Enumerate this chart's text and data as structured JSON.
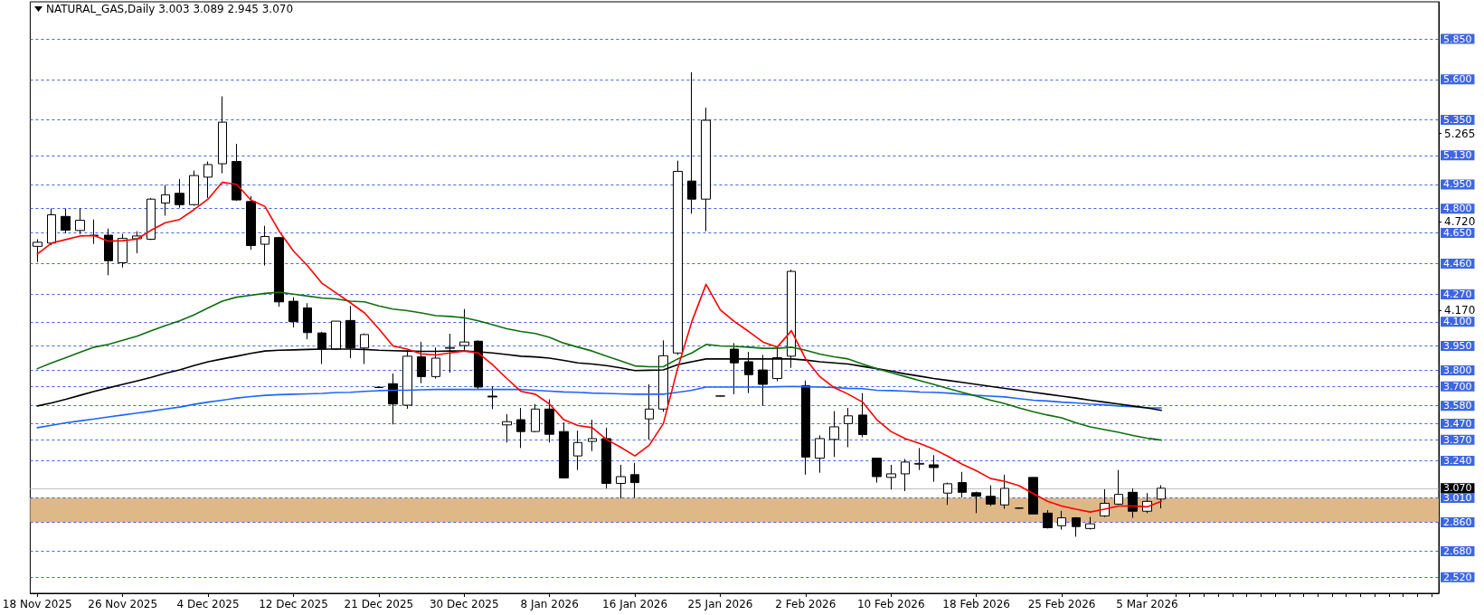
{
  "chart_data": {
    "type": "candlestick",
    "title": "NATURAL_GAS,Daily 3.003 3.089 2.945 3.070",
    "categories": [
      "18 Nov 2025",
      null,
      null,
      null,
      null,
      null,
      "26 Nov 2025",
      null,
      null,
      null,
      null,
      null,
      "4 Dec 2025",
      null,
      null,
      null,
      null,
      null,
      "12 Dec 2025",
      null,
      null,
      null,
      null,
      null,
      "21 Dec 2025",
      null,
      null,
      null,
      null,
      null,
      "30 Dec 2025",
      null,
      null,
      null,
      null,
      null,
      "8 Jan 2026",
      null,
      null,
      null,
      null,
      null,
      "16 Jan 2026",
      null,
      null,
      null,
      null,
      null,
      "25 Jan 2026",
      null,
      null,
      null,
      null,
      null,
      "2 Feb 2026",
      null,
      null,
      null,
      null,
      null,
      "10 Feb 2026",
      null,
      null,
      null,
      null,
      null,
      "18 Feb 2026",
      null,
      null,
      null,
      null,
      null,
      "25 Feb 2026",
      null,
      null,
      null,
      null,
      null,
      "5 Mar 2026",
      null
    ],
    "ohlc": [
      [
        4.567,
        4.611,
        4.47,
        4.592
      ],
      [
        4.587,
        4.801,
        4.575,
        4.762
      ],
      [
        4.752,
        4.801,
        4.648,
        4.667
      ],
      [
        4.665,
        4.801,
        4.643,
        4.728
      ],
      [
        4.633,
        4.733,
        4.582,
        4.636
      ],
      [
        4.636,
        4.677,
        4.388,
        4.478
      ],
      [
        4.466,
        4.643,
        4.436,
        4.616
      ],
      [
        4.614,
        4.66,
        4.524,
        4.631
      ],
      [
        4.611,
        4.866,
        4.606,
        4.859
      ],
      [
        4.835,
        4.946,
        4.757,
        4.886
      ],
      [
        4.895,
        4.983,
        4.806,
        4.825
      ],
      [
        4.825,
        5.036,
        4.818,
        5.005
      ],
      [
        4.995,
        5.092,
        4.866,
        5.073
      ],
      [
        5.078,
        5.495,
        5.019,
        5.335
      ],
      [
        5.092,
        5.201,
        4.849,
        4.854
      ],
      [
        4.844,
        4.878,
        4.546,
        4.572
      ],
      [
        4.58,
        4.694,
        4.448,
        4.628
      ],
      [
        4.621,
        4.626,
        4.193,
        4.223
      ],
      [
        4.227,
        4.252,
        4.065,
        4.101
      ],
      [
        4.186,
        4.215,
        3.992,
        4.033
      ],
      [
        4.031,
        4.038,
        3.839,
        3.931
      ],
      [
        3.931,
        4.104,
        3.926,
        4.104
      ],
      [
        4.108,
        4.198,
        3.875,
        3.938
      ],
      [
        3.938,
        4.028,
        3.839,
        4.021
      ],
      [
        3.693,
        3.698,
        3.69,
        3.695
      ],
      [
        3.717,
        3.78,
        3.465,
        3.591
      ],
      [
        3.584,
        3.914,
        3.562,
        3.887
      ],
      [
        3.883,
        3.975,
        3.72,
        3.761
      ],
      [
        3.761,
        3.941,
        3.749,
        3.875
      ],
      [
        3.936,
        4.026,
        3.785,
        3.941
      ],
      [
        3.953,
        4.179,
        3.919,
        3.975
      ],
      [
        3.98,
        3.985,
        3.683,
        3.696
      ],
      [
        3.64,
        3.7,
        3.56,
        3.635
      ],
      [
        3.462,
        3.528,
        3.353,
        3.482
      ],
      [
        3.494,
        3.567,
        3.319,
        3.421
      ],
      [
        3.421,
        3.591,
        3.416,
        3.56
      ],
      [
        3.56,
        3.62,
        3.353,
        3.404
      ],
      [
        3.421,
        3.477,
        3.13,
        3.134
      ],
      [
        3.27,
        3.426,
        3.183,
        3.353
      ],
      [
        3.36,
        3.494,
        3.3,
        3.377
      ],
      [
        3.377,
        3.445,
        3.069,
        3.1
      ],
      [
        3.1,
        3.215,
        3.008,
        3.142
      ],
      [
        3.154,
        3.227,
        3.013,
        3.105
      ],
      [
        3.499,
        3.713,
        3.372,
        3.56
      ],
      [
        3.56,
        3.985,
        3.543,
        3.89
      ],
      [
        3.907,
        5.097,
        3.895,
        5.031
      ],
      [
        4.971,
        5.644,
        4.769,
        4.859
      ],
      [
        4.859,
        5.425,
        4.66,
        5.347
      ],
      [
        3.64,
        3.643,
        3.638,
        3.641
      ],
      [
        3.931,
        3.968,
        3.652,
        3.846
      ],
      [
        3.853,
        3.914,
        3.659,
        3.773
      ],
      [
        3.802,
        3.895,
        3.579,
        3.713
      ],
      [
        3.749,
        3.943,
        3.732,
        3.878
      ],
      [
        3.887,
        4.422,
        3.815,
        4.412
      ],
      [
        3.705,
        3.737,
        3.154,
        3.263
      ],
      [
        3.256,
        3.397,
        3.166,
        3.377
      ],
      [
        3.372,
        3.547,
        3.263,
        3.45
      ],
      [
        3.47,
        3.567,
        3.324,
        3.518
      ],
      [
        3.523,
        3.659,
        3.385,
        3.402
      ],
      [
        3.256,
        3.256,
        3.105,
        3.142
      ],
      [
        3.137,
        3.215,
        3.062,
        3.159
      ],
      [
        3.159,
        3.251,
        3.052,
        3.232
      ],
      [
        3.219,
        3.319,
        3.183,
        3.224
      ],
      [
        3.215,
        3.275,
        3.11,
        3.198
      ],
      [
        3.04,
        3.105,
        2.967,
        3.098
      ],
      [
        3.105,
        3.171,
        3.013,
        3.045
      ],
      [
        3.042,
        3.049,
        2.916,
        3.02
      ],
      [
        3.02,
        3.088,
        2.96,
        2.972
      ],
      [
        2.967,
        3.154,
        2.943,
        3.069
      ],
      [
        2.947,
        2.952,
        2.943,
        2.947
      ],
      [
        3.137,
        3.137,
        2.911,
        2.911
      ],
      [
        2.916,
        2.935,
        2.821,
        2.826
      ],
      [
        2.838,
        2.93,
        2.814,
        2.887
      ],
      [
        2.887,
        2.892,
        2.77,
        2.833
      ],
      [
        2.821,
        2.892,
        2.814,
        2.85
      ],
      [
        2.899,
        3.064,
        2.892,
        2.977
      ],
      [
        2.972,
        3.183,
        2.967,
        3.032
      ],
      [
        3.045,
        3.069,
        2.887,
        2.928
      ],
      [
        2.928,
        3.04,
        2.916,
        2.989
      ],
      [
        3.003,
        3.089,
        2.945,
        3.07
      ]
    ],
    "series": [
      {
        "type": "line",
        "color": "#1f64ff",
        "values": [
          3.445,
          3.46,
          3.475,
          3.487,
          3.499,
          3.511,
          3.523,
          3.535,
          3.547,
          3.56,
          3.572,
          3.589,
          3.603,
          3.615,
          3.628,
          3.637,
          3.645,
          3.649,
          3.652,
          3.654,
          3.657,
          3.662,
          3.664,
          3.669,
          3.674,
          3.676,
          3.676,
          3.679,
          3.681,
          3.681,
          3.681,
          3.681,
          3.681,
          3.681,
          3.681,
          3.676,
          3.671,
          3.666,
          3.664,
          3.659,
          3.657,
          3.654,
          3.652,
          3.652,
          3.652,
          3.664,
          3.676,
          3.696,
          3.696,
          3.696,
          3.696,
          3.696,
          3.698,
          3.7,
          3.698,
          3.696,
          3.693,
          3.688,
          3.686,
          3.676,
          3.674,
          3.671,
          3.666,
          3.664,
          3.659,
          3.652,
          3.645,
          3.64,
          3.635,
          3.625,
          3.615,
          3.61,
          3.603,
          3.598,
          3.591,
          3.586,
          3.579,
          3.574,
          3.567,
          3.567
        ]
      },
      {
        "type": "line",
        "color": "#000000",
        "values": [
          3.579,
          3.598,
          3.62,
          3.645,
          3.669,
          3.691,
          3.713,
          3.734,
          3.756,
          3.781,
          3.802,
          3.829,
          3.853,
          3.87,
          3.887,
          3.904,
          3.919,
          3.924,
          3.926,
          3.929,
          3.931,
          3.931,
          3.931,
          3.929,
          3.924,
          3.921,
          3.919,
          3.917,
          3.917,
          3.919,
          3.919,
          3.914,
          3.907,
          3.897,
          3.887,
          3.883,
          3.875,
          3.861,
          3.846,
          3.839,
          3.829,
          3.815,
          3.798,
          3.8,
          3.802,
          3.834,
          3.853,
          3.87,
          3.87,
          3.87,
          3.87,
          3.87,
          3.87,
          3.87,
          3.863,
          3.853,
          3.846,
          3.839,
          3.824,
          3.81,
          3.795,
          3.778,
          3.764,
          3.749,
          3.737,
          3.725,
          3.713,
          3.7,
          3.688,
          3.676,
          3.664,
          3.652,
          3.64,
          3.628,
          3.615,
          3.603,
          3.591,
          3.579,
          3.567,
          3.552
        ]
      },
      {
        "type": "line",
        "color": "#0f6e0f",
        "values": [
          3.81,
          3.846,
          3.878,
          3.912,
          3.943,
          3.96,
          3.985,
          4.011,
          4.045,
          4.077,
          4.106,
          4.142,
          4.186,
          4.228,
          4.252,
          4.264,
          4.276,
          4.283,
          4.271,
          4.259,
          4.247,
          4.242,
          4.228,
          4.223,
          4.198,
          4.179,
          4.169,
          4.155,
          4.138,
          4.133,
          4.125,
          4.106,
          4.082,
          4.057,
          4.04,
          4.028,
          4.004,
          3.968,
          3.943,
          3.919,
          3.887,
          3.858,
          3.827,
          3.822,
          3.822,
          3.87,
          3.907,
          3.96,
          3.951,
          3.948,
          3.943,
          3.936,
          3.936,
          3.943,
          3.924,
          3.9,
          3.883,
          3.87,
          3.839,
          3.81,
          3.785,
          3.761,
          3.737,
          3.713,
          3.688,
          3.664,
          3.64,
          3.615,
          3.594,
          3.567,
          3.543,
          3.523,
          3.506,
          3.475,
          3.45,
          3.433,
          3.416,
          3.397,
          3.38,
          3.368
        ]
      },
      {
        "type": "line",
        "color": "#ff0000",
        "values": [
          4.519,
          4.587,
          4.609,
          4.631,
          4.633,
          4.599,
          4.602,
          4.611,
          4.667,
          4.713,
          4.733,
          4.793,
          4.859,
          4.963,
          4.951,
          4.854,
          4.813,
          4.66,
          4.538,
          4.446,
          4.339,
          4.279,
          4.218,
          4.155,
          4.057,
          3.951,
          3.931,
          3.902,
          3.895,
          3.907,
          3.919,
          3.907,
          3.834,
          3.749,
          3.669,
          3.652,
          3.591,
          3.494,
          3.458,
          3.445,
          3.372,
          3.324,
          3.27,
          3.336,
          3.47,
          3.81,
          4.101,
          4.332,
          4.174,
          4.101,
          4.04,
          3.975,
          3.943,
          4.045,
          3.87,
          3.761,
          3.693,
          3.652,
          3.603,
          3.494,
          3.421,
          3.377,
          3.348,
          3.312,
          3.268,
          3.219,
          3.178,
          3.13,
          3.113,
          3.086,
          3.037,
          2.989,
          2.96,
          2.94,
          2.923,
          2.94,
          2.96,
          2.96,
          2.955,
          2.989
        ]
      }
    ],
    "ylim": [
      2.42,
      6.08
    ],
    "yticks": [
      {
        "value": 5.265,
        "label": "5.265"
      },
      {
        "value": 4.72,
        "label": "4.720"
      },
      {
        "value": 4.17,
        "label": "4.170"
      }
    ],
    "ref_lines": [
      {
        "axis": "y",
        "value": 5.85,
        "label": "5.850",
        "color": "#3f66e0",
        "line_style": "dashed"
      },
      {
        "axis": "y",
        "value": 5.6,
        "label": "5.600",
        "color": "#3f66e0",
        "line_style": "dashed"
      },
      {
        "axis": "y",
        "value": 5.35,
        "label": "5.350",
        "color": "#3f66e0",
        "line_style": "dashed"
      },
      {
        "axis": "y",
        "value": 5.13,
        "label": "5.130",
        "color": "#3f66e0",
        "line_style": "dashed"
      },
      {
        "axis": "y",
        "value": 4.95,
        "label": "4.950",
        "color": "#3f66e0",
        "line_style": "dashed"
      },
      {
        "axis": "y",
        "value": 4.8,
        "label": "4.800",
        "color": "#3f66e0",
        "line_style": "dashed"
      },
      {
        "axis": "y",
        "value": 4.65,
        "label": "4.650",
        "color": "#3f66e0",
        "line_style": "dashed"
      },
      {
        "axis": "y",
        "value": 4.46,
        "label": "4.460",
        "color": "#3f66e0",
        "line_style": "dashed"
      },
      {
        "axis": "y",
        "value": 4.27,
        "label": "4.270",
        "color": "#3f66e0",
        "line_style": "dashed"
      },
      {
        "axis": "y",
        "value": 4.1,
        "label": "4.100",
        "color": "#3f66e0",
        "line_style": "dashed"
      },
      {
        "axis": "y",
        "value": 3.95,
        "label": "3.950",
        "color": "#3f66e0",
        "line_style": "dashed"
      },
      {
        "axis": "y",
        "value": 3.8,
        "label": "3.800",
        "color": "#3f66e0",
        "line_style": "dashed"
      },
      {
        "axis": "y",
        "value": 3.7,
        "label": "3.700",
        "color": "#3f66e0",
        "line_style": "dashed"
      },
      {
        "axis": "y",
        "value": 3.58,
        "label": "3.580",
        "color": "#3f66e0",
        "line_style": "dashed"
      },
      {
        "axis": "y",
        "value": 3.47,
        "label": "3.470",
        "color": "#3f66e0",
        "line_style": "dashed"
      },
      {
        "axis": "y",
        "value": 3.37,
        "label": "3.370",
        "color": "#3f66e0",
        "line_style": "dashed"
      },
      {
        "axis": "y",
        "value": 3.24,
        "label": "3.240",
        "color": "#3f66e0",
        "line_style": "dashed"
      },
      {
        "axis": "y",
        "value": 3.07,
        "label": "3.070",
        "color": "#c0c0c0",
        "line_style": "solid"
      },
      {
        "axis": "y",
        "value": 3.01,
        "label": "3.010",
        "color": "#3f66e0",
        "line_style": "dashed"
      },
      {
        "axis": "y",
        "value": 2.86,
        "label": "2.860",
        "color": "#3f66e0",
        "line_style": "dashed"
      },
      {
        "axis": "y",
        "value": 2.68,
        "label": "2.680",
        "color": "#3f66e0",
        "line_style": "dashed"
      },
      {
        "axis": "y",
        "value": 2.52,
        "label": "2.520",
        "color": "#3f66e0",
        "line_style": "dashed"
      }
    ],
    "bands": [
      {
        "axis": "y",
        "from": 2.86,
        "to": 3.01,
        "color": "#deb887"
      }
    ],
    "grid": false,
    "marker": "none",
    "line_style": "solid"
  }
}
